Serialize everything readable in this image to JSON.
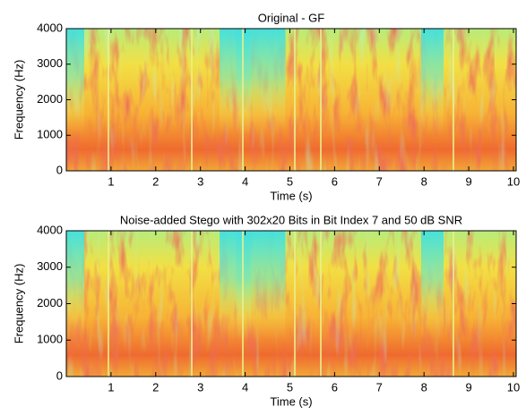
{
  "chart_data": [
    {
      "type": "spectrogram",
      "title": "Original - GF",
      "xlabel": "Time (s)",
      "ylabel": "Frequency (Hz)",
      "xlim": [
        0,
        10
      ],
      "ylim": [
        0,
        4000
      ],
      "xticks": [
        1,
        2,
        3,
        4,
        5,
        6,
        7,
        8,
        9,
        10
      ],
      "yticks": [
        0,
        1000,
        2000,
        3000,
        4000
      ]
    },
    {
      "type": "spectrogram",
      "title": "Noise-added Stego with 302x20 Bits in Bit Index 7 and 50 dB SNR",
      "xlabel": "Time (s)",
      "ylabel": "Frequency (Hz)",
      "xlim": [
        0,
        10
      ],
      "ylim": [
        0,
        4000
      ],
      "xticks": [
        1,
        2,
        3,
        4,
        5,
        6,
        7,
        8,
        9,
        10
      ],
      "yticks": [
        0,
        1000,
        2000,
        3000,
        4000
      ]
    }
  ]
}
